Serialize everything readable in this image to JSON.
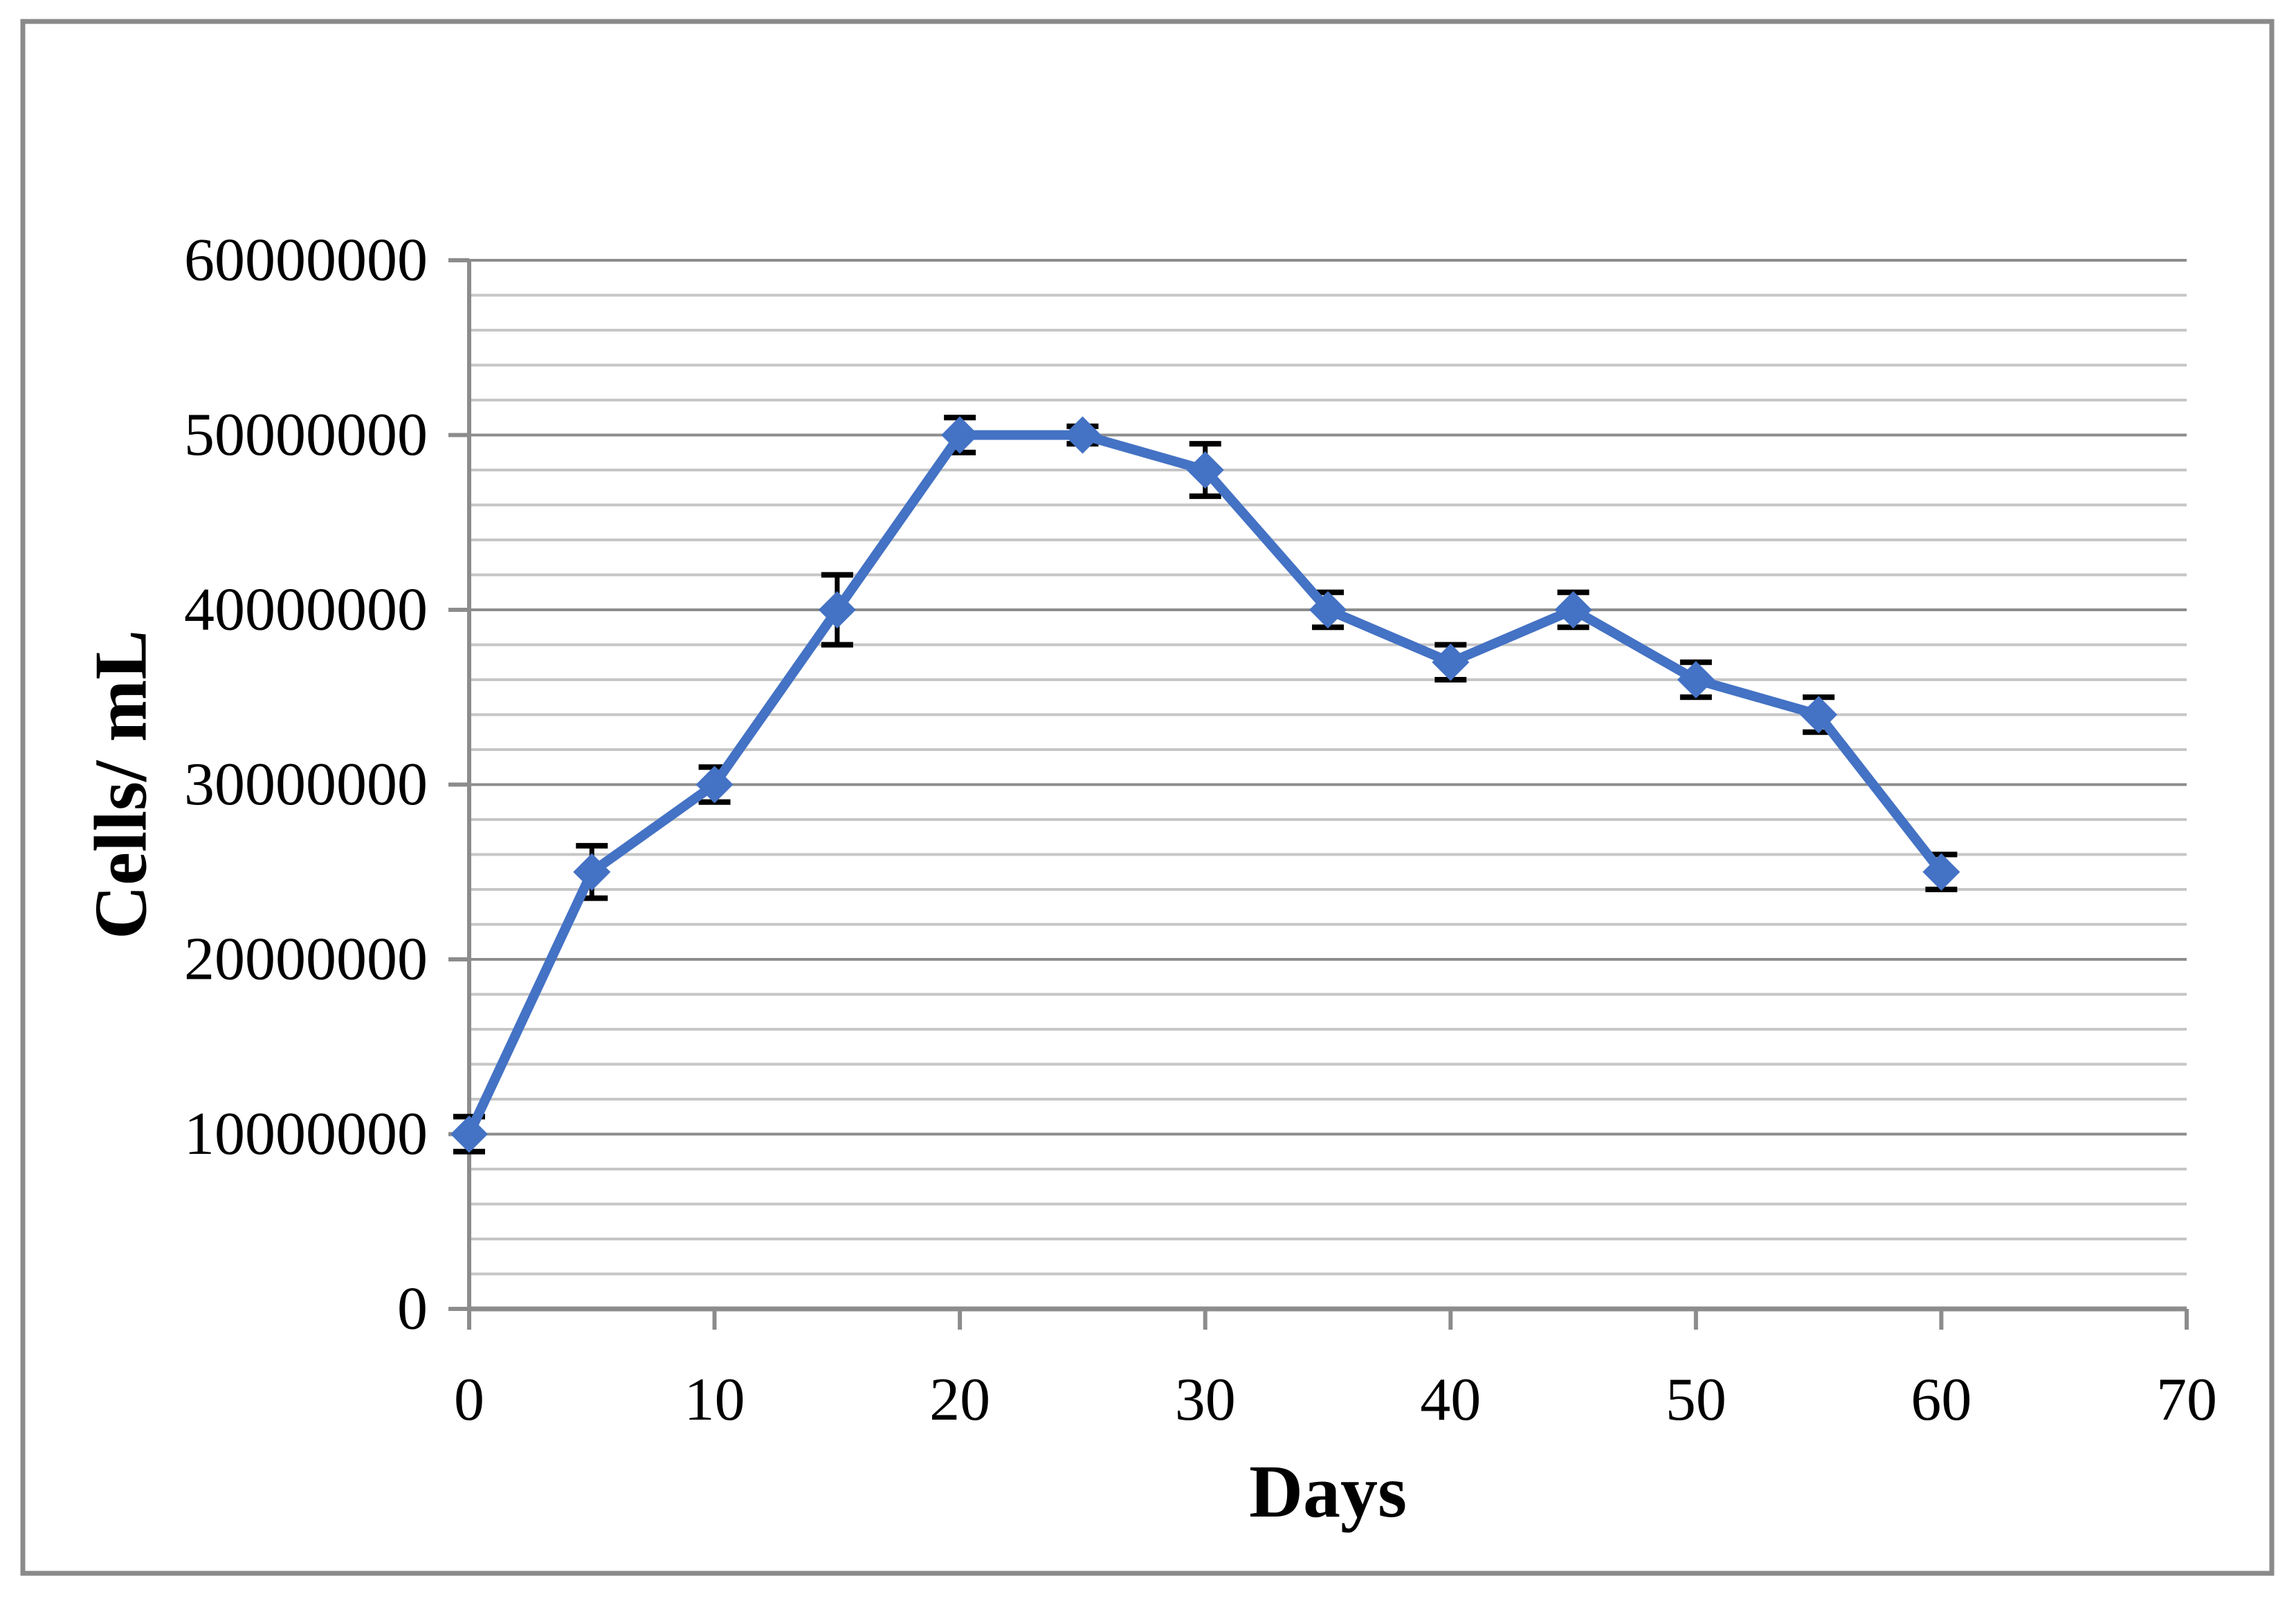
{
  "figure": {
    "background": "#FFFFFF",
    "border_color": "#8A8A8A"
  },
  "chart_data": {
    "type": "line",
    "title": "",
    "xlabel": "Days",
    "ylabel": "Cells/ mL",
    "x": [
      0,
      5,
      10,
      15,
      20,
      25,
      30,
      35,
      40,
      45,
      50,
      55,
      60
    ],
    "series": [
      {
        "name": "Cells/ mL",
        "values": [
          10000000,
          25000000,
          30000000,
          40000000,
          50000000,
          50000000,
          48000000,
          40000000,
          37000000,
          40000000,
          36000000,
          34000000,
          25000000
        ],
        "errors": [
          1000000,
          1500000,
          1000000,
          2000000,
          1000000,
          500000,
          1500000,
          1000000,
          1000000,
          1000000,
          1000000,
          1000000,
          1000000
        ]
      }
    ],
    "xlim": [
      0,
      70
    ],
    "ylim": [
      0,
      60000000
    ],
    "x_ticks": [
      0,
      10,
      20,
      30,
      40,
      50,
      60,
      70
    ],
    "x_tick_labels": [
      "0",
      "10",
      "20",
      "30",
      "40",
      "50",
      "60",
      "70"
    ],
    "y_ticks": [
      0,
      10000000,
      20000000,
      30000000,
      40000000,
      50000000,
      60000000
    ],
    "y_tick_labels": [
      "0",
      "10000000",
      "20000000",
      "30000000",
      "40000000",
      "50000000",
      "60000000"
    ],
    "y_major_step": 10000000,
    "y_minor_step": 2000000,
    "grid": "horizontal major and minor gridlines, no vertical gridlines",
    "legend_position": "none",
    "marker": "diamond",
    "error_bars": true,
    "colors": {
      "series": "#4472C4",
      "major_grid": "#8C8C8C",
      "minor_grid": "#C6C6C6",
      "axis": "#8C8C8C",
      "frame": "#8A8A8A",
      "error_bar": "#000000",
      "text": "#000000",
      "background": "#FFFFFF"
    }
  }
}
